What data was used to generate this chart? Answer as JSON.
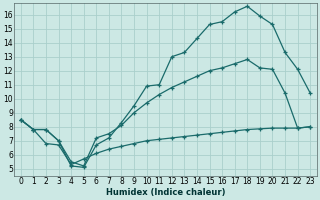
{
  "xlabel": "Humidex (Indice chaleur)",
  "bg_color": "#cce8e4",
  "grid_color": "#aacfcc",
  "line_color": "#1a6b6b",
  "xlim": [
    -0.5,
    23.5
  ],
  "ylim": [
    4.5,
    16.8
  ],
  "xticks": [
    0,
    1,
    2,
    3,
    4,
    5,
    6,
    7,
    8,
    9,
    10,
    11,
    12,
    13,
    14,
    15,
    16,
    17,
    18,
    19,
    20,
    21,
    22,
    23
  ],
  "yticks": [
    5,
    6,
    7,
    8,
    9,
    10,
    11,
    12,
    13,
    14,
    15,
    16
  ],
  "line1_x": [
    0,
    1,
    2,
    3,
    4,
    5,
    6,
    7,
    8,
    9,
    10,
    11,
    12,
    13,
    14,
    15,
    16,
    17,
    18,
    19,
    20,
    21,
    22,
    23
  ],
  "line1_y": [
    8.5,
    7.8,
    7.8,
    7.0,
    5.2,
    5.1,
    6.7,
    7.2,
    8.3,
    9.5,
    10.9,
    11.0,
    13.0,
    13.3,
    14.3,
    15.3,
    15.5,
    16.2,
    16.6,
    15.9,
    15.3,
    13.3,
    12.1,
    10.4
  ],
  "line2_x": [
    0,
    1,
    2,
    3,
    4,
    5,
    6,
    7,
    8,
    9,
    10,
    11,
    12,
    13,
    14,
    15,
    16,
    17,
    18,
    19,
    20,
    21,
    22,
    23
  ],
  "line2_y": [
    8.5,
    7.8,
    7.8,
    7.0,
    5.5,
    5.2,
    7.2,
    7.5,
    8.1,
    9.0,
    9.7,
    10.3,
    10.8,
    11.2,
    11.6,
    12.0,
    12.2,
    12.5,
    12.8,
    12.2,
    12.1,
    10.4,
    7.9,
    8.0
  ],
  "line3_x": [
    0,
    1,
    2,
    3,
    4,
    5,
    6,
    7,
    8,
    9,
    10,
    11,
    12,
    13,
    14,
    15,
    16,
    17,
    18,
    19,
    20,
    21,
    22,
    23
  ],
  "line3_y": [
    8.5,
    7.8,
    6.8,
    6.7,
    5.3,
    5.7,
    6.1,
    6.4,
    6.6,
    6.8,
    7.0,
    7.1,
    7.2,
    7.3,
    7.4,
    7.5,
    7.6,
    7.7,
    7.8,
    7.85,
    7.9,
    7.9,
    7.9,
    8.0
  ]
}
